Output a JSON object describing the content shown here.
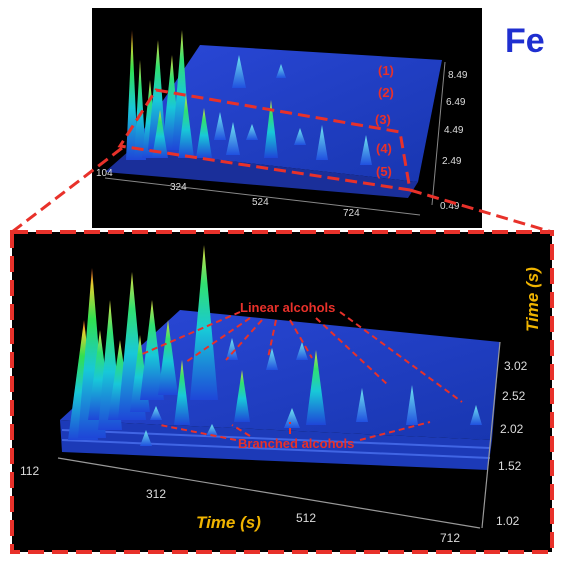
{
  "element_label": "Fe",
  "top_panel": {
    "x_ticks": [
      "104",
      "324",
      "524",
      "724"
    ],
    "y_ticks": [
      "8.49",
      "6.49",
      "4.49",
      "2.49",
      "0.49"
    ],
    "region_labels": [
      "(1)",
      "(2)",
      "(3)",
      "(4)",
      "(5)"
    ]
  },
  "bottom_panel": {
    "x_axis_title": "Time (s)",
    "y_axis_title": "Time (s)",
    "x_ticks": [
      "112",
      "312",
      "512",
      "712"
    ],
    "y_ticks": [
      "3.02",
      "2.52",
      "2.02",
      "1.52",
      "1.02"
    ],
    "annotations": {
      "linear": "Linear alcohols",
      "branched": "Branched alcohols"
    }
  },
  "colors": {
    "label_red": "#e8312a",
    "axis_title_gold": "#f0b400",
    "fe_blue": "#1f2fd0",
    "surface_blue": "#1f3ec8"
  }
}
